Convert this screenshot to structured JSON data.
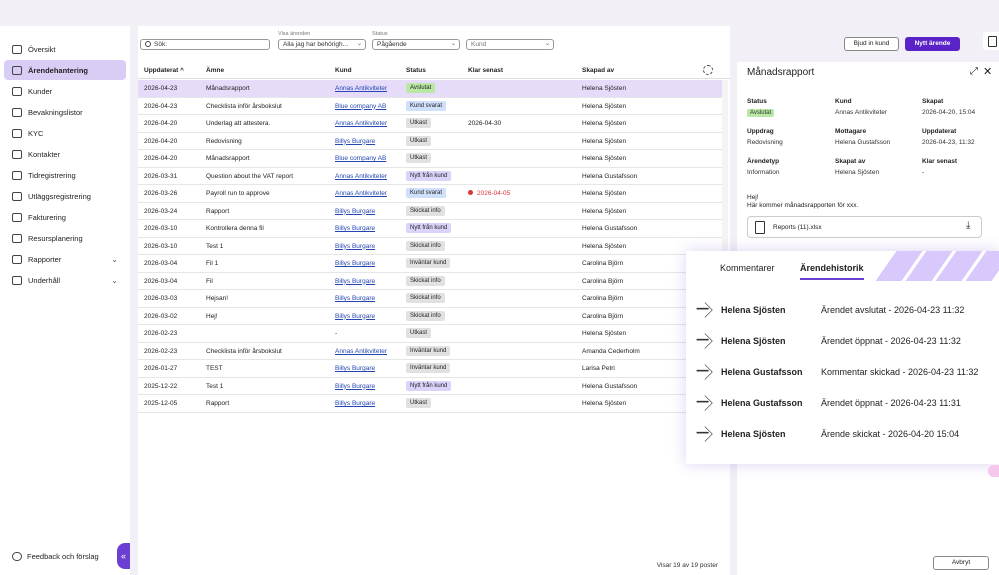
{
  "sidebar": {
    "items": [
      {
        "label": "Översikt",
        "icon": "grid-icon"
      },
      {
        "label": "Ärendehantering",
        "icon": "inbox-icon",
        "active": true
      },
      {
        "label": "Kunder",
        "icon": "users-icon"
      },
      {
        "label": "Bevakningslistor",
        "icon": "list-icon"
      },
      {
        "label": "KYC",
        "icon": "kyc-icon"
      },
      {
        "label": "Kontakter",
        "icon": "contacts-icon"
      },
      {
        "label": "Tidregistrering",
        "icon": "clock-icon"
      },
      {
        "label": "Utläggsregistrering",
        "icon": "receipt-icon"
      },
      {
        "label": "Fakturering",
        "icon": "invoice-icon"
      },
      {
        "label": "Resursplanering",
        "icon": "resource-icon"
      },
      {
        "label": "Rapporter",
        "icon": "chart-icon",
        "expandable": true
      },
      {
        "label": "Underhåll",
        "icon": "settings-icon",
        "expandable": true
      }
    ],
    "feedback_label": "Feedback och förslag"
  },
  "filters": {
    "search_placeholder": "Sök:",
    "visa_label": "Visa ärenden",
    "visa_value": "Alla jag har behörigh...",
    "status_label": "Status",
    "status_value": "Pågående",
    "kund_placeholder": "Kund"
  },
  "actions": {
    "invite_label": "Bjud in kund",
    "new_label": "Nytt ärende"
  },
  "table": {
    "columns": [
      "Uppdaterat",
      "Ämne",
      "Kund",
      "Status",
      "Klar senast",
      "Skapad av"
    ],
    "sort_indicator": "^",
    "rows": [
      {
        "date": "2026-04-23",
        "subject": "Månadsrapport",
        "customer": "Annas Antikviteter",
        "status": "Avslutat",
        "status_color": "green",
        "due": "",
        "creator": "Helena Sjösten",
        "selected": true
      },
      {
        "date": "2026-04-23",
        "subject": "Checklista inför årsbokslut",
        "customer": "Blue company AB",
        "status": "Kund svarat",
        "status_color": "blue",
        "due": "",
        "creator": "Helena Sjösten"
      },
      {
        "date": "2026-04-20",
        "subject": "Underlag att attestera.",
        "customer": "Annas Antikviteter",
        "status": "Utkast",
        "status_color": "gray",
        "due": "2026-04-30",
        "creator": "Helena Sjösten"
      },
      {
        "date": "2026-04-20",
        "subject": "Redovisning",
        "customer": "Billys Burgare",
        "status": "Utkast",
        "status_color": "gray",
        "due": "",
        "creator": "Helena Sjösten"
      },
      {
        "date": "2026-04-20",
        "subject": "Månadsrapport",
        "customer": "Blue company AB",
        "status": "Utkast",
        "status_color": "gray",
        "due": "",
        "creator": "Helena Sjösten"
      },
      {
        "date": "2026-03-31",
        "subject": "Question about the VAT report",
        "customer": "Annas Antikviteter",
        "status": "Nytt från kund",
        "status_color": "purple",
        "due": "",
        "creator": "Helena Gustafsson"
      },
      {
        "date": "2026-03-26",
        "subject": "Payroll run to approve",
        "customer": "Annas Antikviteter",
        "status": "Kund svarat",
        "status_color": "blue",
        "due": "2026-04-05",
        "due_overdue": true,
        "creator": "Helena Sjösten"
      },
      {
        "date": "2026-03-24",
        "subject": "Rapport",
        "customer": "Billys Burgare",
        "status": "Skickat info",
        "status_color": "gray",
        "due": "",
        "creator": "Helena Sjösten"
      },
      {
        "date": "2026-03-10",
        "subject": "Kontrollera denna fil",
        "customer": "Billys Burgare",
        "status": "Nytt från kund",
        "status_color": "purple",
        "due": "",
        "creator": "Helena Gustafsson"
      },
      {
        "date": "2026-03-10",
        "subject": "Test 1",
        "customer": "Billys Burgare",
        "status": "Skickat info",
        "status_color": "gray",
        "due": "",
        "creator": "Helena Sjösten"
      },
      {
        "date": "2026-03-04",
        "subject": "Fil 1",
        "customer": "Billys Burgare",
        "status": "Inväntar kund",
        "status_color": "gray",
        "due": "",
        "creator": "Carolina Björn"
      },
      {
        "date": "2026-03-04",
        "subject": "Fil",
        "customer": "Billys Burgare",
        "status": "Skickat info",
        "status_color": "gray",
        "due": "",
        "creator": "Carolina Björn"
      },
      {
        "date": "2026-03-03",
        "subject": "Hejsan!",
        "customer": "Billys Burgare",
        "status": "Skickat info",
        "status_color": "gray",
        "due": "",
        "creator": "Carolina Björn"
      },
      {
        "date": "2026-03-02",
        "subject": "Hej!",
        "customer": "Billys Burgare",
        "status": "Skickat info",
        "status_color": "gray",
        "due": "",
        "creator": "Carolina Björn"
      },
      {
        "date": "2026-02-23",
        "subject": "",
        "customer": "-",
        "status": "Utkast",
        "status_color": "gray",
        "due": "",
        "creator": "Helena Sjösten",
        "plain_customer": true
      },
      {
        "date": "2026-02-23",
        "subject": "Checklista inför årsbokslut",
        "customer": "Annas Antikviteter",
        "status": "Inväntar kund",
        "status_color": "gray",
        "due": "",
        "creator": "Amanda Cederholm"
      },
      {
        "date": "2026-01-27",
        "subject": "TEST",
        "customer": "Billys Burgare",
        "status": "Inväntar kund",
        "status_color": "gray",
        "due": "",
        "creator": "Larisa Petri"
      },
      {
        "date": "2025-12-22",
        "subject": "Test 1",
        "customer": "Billys Burgare",
        "status": "Nytt från kund",
        "status_color": "purple",
        "due": "",
        "creator": "Helena Gustafsson"
      },
      {
        "date": "2025-12-05",
        "subject": "Rapport",
        "customer": "Billys Burgare",
        "status": "Utkast",
        "status_color": "gray",
        "due": "",
        "creator": "Helena Sjösten"
      }
    ],
    "footer": "Visar 19 av 19 poster"
  },
  "panel": {
    "title": "Månadsrapport",
    "fields": [
      {
        "label": "Status",
        "value": "Avslutat",
        "badge": true
      },
      {
        "label": "Kund",
        "value": "Annas Antikviteter"
      },
      {
        "label": "Skapat",
        "value": "2026-04-20, 15:04"
      },
      {
        "label": "Uppdrag",
        "value": "Redovisning"
      },
      {
        "label": "Mottagare",
        "value": "Helena Gustafsson"
      },
      {
        "label": "Uppdaterat",
        "value": "2026-04-23, 11:32"
      },
      {
        "label": "Ärendetyp",
        "value": "Information"
      },
      {
        "label": "Skapat av",
        "value": "Helena Sjösten"
      },
      {
        "label": "Klar senast",
        "value": "-"
      }
    ],
    "message_line1": "Hej!",
    "message_line2": "Här kommer månadsrapporten för xxx.",
    "attachment": "Reports (11).xlsx",
    "cancel_label": "Avbryt"
  },
  "history": {
    "tabs": [
      "Kommentarer",
      "Ärendehistorik"
    ],
    "entries": [
      {
        "who": "Helena Sjösten",
        "what": "Ärendet avslutat - 2026-04-23 11:32"
      },
      {
        "who": "Helena Sjösten",
        "what": "Ärendet öppnat - 2026-04-23 11:32"
      },
      {
        "who": "Helena Gustafsson",
        "what": "Kommentar skickad - 2026-04-23 11:32"
      },
      {
        "who": "Helena Gustafsson",
        "what": "Ärendet öppnat - 2026-04-23 11:31"
      },
      {
        "who": "Helena Sjösten",
        "what": "Ärende skickat - 2026-04-20 15:04"
      }
    ]
  }
}
